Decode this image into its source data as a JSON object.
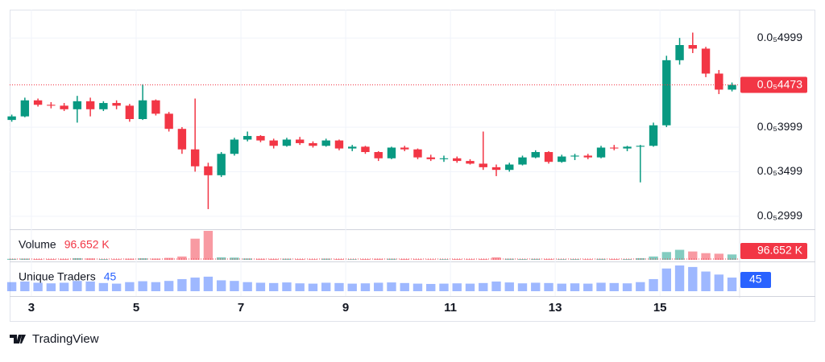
{
  "chart_data": {
    "type": "candlestick",
    "x": [
      2.625,
      2.875,
      3.125,
      3.375,
      3.625,
      3.875,
      4.125,
      4.375,
      4.625,
      4.875,
      5.125,
      5.375,
      5.625,
      5.875,
      6.125,
      6.375,
      6.625,
      6.875,
      7.125,
      7.375,
      7.625,
      7.875,
      8.125,
      8.375,
      8.625,
      8.875,
      9.125,
      9.375,
      9.625,
      9.875,
      10.125,
      10.375,
      10.625,
      10.875,
      11.125,
      11.375,
      11.625,
      11.875,
      12.125,
      12.375,
      12.625,
      12.875,
      13.125,
      13.375,
      13.625,
      13.875,
      14.125,
      14.375,
      14.625,
      14.875,
      15.125,
      15.375,
      15.625,
      15.875,
      16.125,
      16.375
    ],
    "open": [
      4.08e-06,
      4.12e-06,
      4.3e-06,
      4.25e-06,
      4.24e-06,
      4.2e-06,
      4.29e-06,
      4.2e-06,
      4.27e-06,
      4.24e-06,
      4.09e-06,
      4.3e-06,
      4.15e-06,
      3.98e-06,
      3.75e-06,
      3.56e-06,
      3.46e-06,
      3.7e-06,
      3.86e-06,
      3.9e-06,
      3.85e-06,
      3.79e-06,
      3.86e-06,
      3.82e-06,
      3.79e-06,
      3.85e-06,
      3.76e-06,
      3.78e-06,
      3.72e-06,
      3.65e-06,
      3.77e-06,
      3.75e-06,
      3.66e-06,
      3.64e-06,
      3.65e-06,
      3.62e-06,
      3.59e-06,
      3.55e-06,
      3.52e-06,
      3.58e-06,
      3.66e-06,
      3.72e-06,
      3.61e-06,
      3.67e-06,
      3.68e-06,
      3.66e-06,
      3.77e-06,
      3.76e-06,
      3.78e-06,
      3.79e-06,
      4.02e-06,
      4.75e-06,
      4.92e-06,
      4.88e-06,
      4.6e-06,
      4.42e-06
    ],
    "high": [
      4.14e-06,
      4.33e-06,
      4.32e-06,
      4.28e-06,
      4.27e-06,
      4.35e-06,
      4.33e-06,
      4.29e-06,
      4.3e-06,
      4.26e-06,
      4.48e-06,
      4.31e-06,
      4.17e-06,
      4e-06,
      4.32e-06,
      3.6e-06,
      3.72e-06,
      3.88e-06,
      3.95e-06,
      3.91e-06,
      3.87e-06,
      3.88e-06,
      3.89e-06,
      3.84e-06,
      3.87e-06,
      3.86e-06,
      3.8e-06,
      3.79e-06,
      3.73e-06,
      3.78e-06,
      3.79e-06,
      3.76e-06,
      3.69e-06,
      3.68e-06,
      3.67e-06,
      3.64e-06,
      3.95e-06,
      3.58e-06,
      3.6e-06,
      3.68e-06,
      3.74e-06,
      3.73e-06,
      3.69e-06,
      3.7e-06,
      3.7e-06,
      3.79e-06,
      3.8e-06,
      3.79e-06,
      3.8e-06,
      4.05e-06,
      4.8e-06,
      5e-06,
      5.06e-06,
      4.9e-06,
      4.64e-06,
      4.5e-06
    ],
    "low": [
      4.06e-06,
      4.11e-06,
      4.23e-06,
      4.21e-06,
      4.18e-06,
      4.05e-06,
      4.12e-06,
      4.18e-06,
      4.2e-06,
      4.06e-06,
      4.08e-06,
      4.13e-06,
      3.95e-06,
      3.7e-06,
      3.5e-06,
      3.08e-06,
      3.44e-06,
      3.68e-06,
      3.84e-06,
      3.83e-06,
      3.76e-06,
      3.78e-06,
      3.8e-06,
      3.77e-06,
      3.78e-06,
      3.74e-06,
      3.73e-06,
      3.7e-06,
      3.62e-06,
      3.64e-06,
      3.73e-06,
      3.64e-06,
      3.62e-06,
      3.61e-06,
      3.6e-06,
      3.58e-06,
      3.52e-06,
      3.45e-06,
      3.5e-06,
      3.57e-06,
      3.65e-06,
      3.59e-06,
      3.6e-06,
      3.63e-06,
      3.64e-06,
      3.65e-06,
      3.74e-06,
      3.73e-06,
      3.38e-06,
      3.78e-06,
      4e-06,
      4.7e-06,
      4.83e-06,
      4.56e-06,
      4.37e-06,
      4.4e-06
    ],
    "close": [
      4.12e-06,
      4.3e-06,
      4.25e-06,
      4.24e-06,
      4.2e-06,
      4.29e-06,
      4.2e-06,
      4.27e-06,
      4.24e-06,
      4.09e-06,
      4.3e-06,
      4.15e-06,
      3.98e-06,
      3.75e-06,
      3.56e-06,
      3.46e-06,
      3.7e-06,
      3.86e-06,
      3.9e-06,
      3.85e-06,
      3.79e-06,
      3.86e-06,
      3.82e-06,
      3.79e-06,
      3.85e-06,
      3.76e-06,
      3.78e-06,
      3.72e-06,
      3.65e-06,
      3.77e-06,
      3.75e-06,
      3.66e-06,
      3.64e-06,
      3.65e-06,
      3.62e-06,
      3.59e-06,
      3.55e-06,
      3.52e-06,
      3.58e-06,
      3.66e-06,
      3.72e-06,
      3.61e-06,
      3.67e-06,
      3.68e-06,
      3.66e-06,
      3.77e-06,
      3.76e-06,
      3.78e-06,
      3.79e-06,
      4.02e-06,
      4.75e-06,
      4.92e-06,
      4.88e-06,
      4.6e-06,
      4.42e-06,
      4.473e-06
    ],
    "colors": {
      "up": "#089981",
      "down": "#f23645"
    },
    "xlim": [
      2.585,
      16.52
    ],
    "xticks": [
      3,
      5,
      7,
      9,
      11,
      13,
      15
    ],
    "ylim": [
      2.854e-06,
      5.317e-06
    ],
    "yticks": [
      {
        "value": 2.999e-06,
        "label": "0.0₅2999"
      },
      {
        "value": 3.499e-06,
        "label": "0.0₅3499"
      },
      {
        "value": 3.999e-06,
        "label": "0.0₅3999"
      },
      {
        "value": 4.999e-06,
        "label": "0.0₅4999"
      }
    ],
    "last_price": {
      "value": 4.473e-06,
      "label": "0.0₅4473"
    },
    "grid": true,
    "volume": {
      "name": "Volume",
      "values": [
        18,
        22,
        15,
        14,
        16,
        30,
        25,
        14,
        12,
        20,
        28,
        22,
        35,
        60,
        380,
        520,
        45,
        40,
        25,
        18,
        16,
        20,
        14,
        12,
        22,
        15,
        12,
        14,
        18,
        20,
        16,
        12,
        10,
        12,
        14,
        12,
        15,
        45,
        20,
        14,
        18,
        16,
        12,
        14,
        12,
        18,
        15,
        14,
        30,
        60,
        140,
        180,
        150,
        120,
        110,
        96.652
      ],
      "value_labels": [
        null,
        null,
        null,
        null,
        null,
        null,
        null,
        null,
        null,
        null,
        null,
        null,
        null,
        null,
        null,
        null,
        null,
        null,
        null,
        null,
        null,
        null,
        null,
        null,
        null,
        null,
        null,
        null,
        null,
        null,
        null,
        null,
        null,
        null,
        null,
        null,
        null,
        null,
        null,
        null,
        null,
        null,
        null,
        null,
        null,
        null,
        null,
        null,
        null,
        null,
        null,
        null,
        null,
        null,
        null,
        "96.652 K"
      ]
    },
    "traders": {
      "name": "Unique Traders",
      "color": "#2962ff",
      "values": [
        30,
        32,
        28,
        26,
        28,
        34,
        32,
        27,
        25,
        30,
        33,
        30,
        34,
        40,
        45,
        48,
        36,
        34,
        30,
        28,
        27,
        29,
        26,
        25,
        28,
        27,
        25,
        26,
        28,
        29,
        27,
        25,
        24,
        25,
        26,
        25,
        27,
        32,
        29,
        26,
        28,
        27,
        25,
        26,
        25,
        28,
        27,
        26,
        30,
        40,
        75,
        85,
        80,
        65,
        55,
        45
      ]
    }
  },
  "branding": "TradingView"
}
